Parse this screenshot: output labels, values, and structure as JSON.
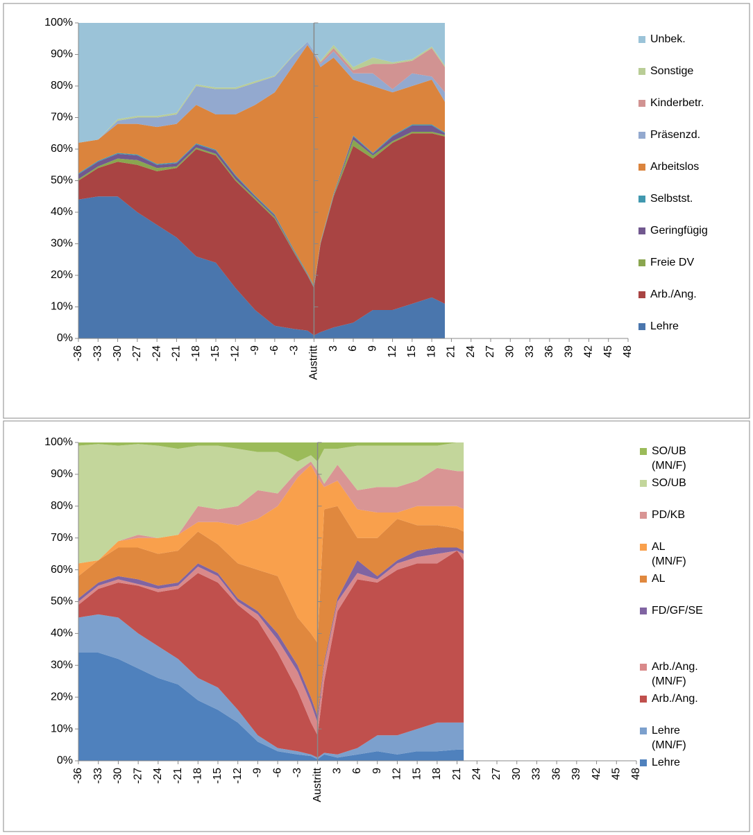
{
  "chart_data": [
    {
      "type": "area",
      "stacked": true,
      "legend": "right",
      "x": [
        -36,
        -33,
        -30,
        -27,
        -24,
        -21,
        -18,
        -15,
        -12,
        -9,
        -6,
        -3,
        -1,
        0,
        1,
        3,
        6,
        9,
        12,
        15,
        18,
        20
      ],
      "xlim": [
        -36,
        48
      ],
      "xticks": [
        -36,
        -33,
        -30,
        -27,
        -24,
        -21,
        -18,
        -15,
        -12,
        -9,
        -6,
        -3,
        {
          "value": 0,
          "label": "Austritt"
        },
        3,
        6,
        9,
        12,
        15,
        18,
        21,
        24,
        27,
        30,
        33,
        36,
        39,
        42,
        45,
        48
      ],
      "ylim": [
        0,
        100
      ],
      "yticks": [
        {
          "value": 0,
          "label": "0%"
        },
        {
          "value": 10,
          "label": "10%"
        },
        {
          "value": 20,
          "label": "20%"
        },
        {
          "value": 30,
          "label": "30%"
        },
        {
          "value": 40,
          "label": "40%"
        },
        {
          "value": 50,
          "label": "50%"
        },
        {
          "value": 60,
          "label": "60%"
        },
        {
          "value": 70,
          "label": "70%"
        },
        {
          "value": 80,
          "label": "80%"
        },
        {
          "value": 90,
          "label": "90%"
        },
        {
          "value": 100,
          "label": "100%"
        }
      ],
      "series": [
        {
          "name": "Lehre",
          "color": "#4a76ad",
          "values": [
            44,
            45,
            45,
            40,
            36,
            32,
            26,
            24,
            16,
            9,
            4,
            3,
            2.5,
            1,
            2,
            3.5,
            5,
            9,
            9,
            11,
            13,
            11
          ]
        },
        {
          "name": "Arb./Ang.",
          "color": "#a94443",
          "values": [
            6,
            9,
            11,
            15,
            17,
            22,
            34,
            34,
            34,
            35,
            34,
            24,
            17.5,
            15,
            28,
            41.5,
            56,
            48,
            53,
            54,
            52,
            53
          ]
        },
        {
          "name": "Freie DV",
          "color": "#8aa64f",
          "values": [
            0.5,
            0.5,
            1,
            1.5,
            1,
            0.5,
            0.5,
            0.5,
            0.5,
            0.5,
            0.5,
            0.3,
            0.2,
            0.2,
            0.2,
            0.3,
            2,
            1,
            0.5,
            0.5,
            0.5,
            0.5
          ]
        },
        {
          "name": "Geringfügig",
          "color": "#71588f",
          "values": [
            1.5,
            1.5,
            1.5,
            1.5,
            1,
            1,
            1,
            1,
            1,
            0.5,
            0.5,
            0.3,
            0.2,
            0.2,
            0.2,
            0.3,
            1,
            0.5,
            1.5,
            2,
            2,
            0.5
          ]
        },
        {
          "name": "Selbstst.",
          "color": "#4198af",
          "values": [
            0.3,
            0.3,
            0.3,
            0.3,
            0.3,
            0.3,
            0.3,
            0.3,
            0.3,
            0.3,
            0.3,
            0.3,
            0.3,
            0.3,
            0.3,
            0.3,
            0.3,
            0.3,
            0.3,
            0.3,
            0.3,
            0.3
          ]
        },
        {
          "name": "Arbeitslos",
          "color": "#db843d",
          "values": [
            9.7,
            6.7,
            9.2,
            9.7,
            11.7,
            12.2,
            12.2,
            11.2,
            19.2,
            28.7,
            38.7,
            59.1,
            72.3,
            73.3,
            55.3,
            43.1,
            17.7,
            21.2,
            13.7,
            12.2,
            14.2,
            9.7
          ]
        },
        {
          "name": "Präsenzd.",
          "color": "#93a9cf",
          "values": [
            0,
            0,
            1,
            2,
            3,
            3,
            6,
            8,
            8,
            7,
            5,
            3,
            1,
            1,
            1,
            2,
            2,
            4,
            1,
            4,
            1,
            3
          ]
        },
        {
          "name": "Kinderbetr.",
          "color": "#d19392",
          "values": [
            0,
            0,
            0,
            0,
            0,
            0,
            0,
            0,
            0,
            0,
            0,
            0,
            0,
            0,
            0.5,
            1,
            1,
            3,
            8,
            4,
            9,
            8
          ]
        },
        {
          "name": "Sonstige",
          "color": "#b9cd96",
          "values": [
            0,
            0,
            0.5,
            0.5,
            0.5,
            0.5,
            0.5,
            0.5,
            0.5,
            0.5,
            0.3,
            0.3,
            0,
            0,
            0.5,
            1,
            1,
            2,
            0.5,
            0.5,
            0.5,
            0.5
          ]
        },
        {
          "name": "Unbek.",
          "color": "#9bc3d8",
          "values": [
            38,
            37,
            30.5,
            29.5,
            29.5,
            28.5,
            19.5,
            20.5,
            20.5,
            18.5,
            16.7,
            9.7,
            6,
            9,
            12,
            7,
            14,
            11,
            12.5,
            11.5,
            7.5,
            13.5
          ]
        }
      ]
    },
    {
      "type": "area",
      "stacked": true,
      "legend": "right",
      "x": [
        -36,
        -33,
        -30,
        -27,
        -24,
        -21,
        -18,
        -15,
        -12,
        -9,
        -6,
        -3,
        -1,
        0,
        1,
        3,
        6,
        9,
        12,
        15,
        18,
        21,
        22
      ],
      "xlim": [
        -36,
        48
      ],
      "xticks": [
        -36,
        -33,
        -30,
        -27,
        -24,
        -21,
        -18,
        -15,
        -12,
        -9,
        -6,
        -3,
        {
          "value": 0,
          "label": "Austritt"
        },
        3,
        6,
        9,
        12,
        15,
        18,
        21,
        24,
        27,
        30,
        33,
        36,
        39,
        42,
        45,
        48
      ],
      "ylim": [
        0,
        100
      ],
      "yticks": [
        {
          "value": 0,
          "label": "0%"
        },
        {
          "value": 10,
          "label": "10%"
        },
        {
          "value": 20,
          "label": "20%"
        },
        {
          "value": 30,
          "label": "30%"
        },
        {
          "value": 40,
          "label": "40%"
        },
        {
          "value": 50,
          "label": "50%"
        },
        {
          "value": 60,
          "label": "60%"
        },
        {
          "value": 70,
          "label": "70%"
        },
        {
          "value": 80,
          "label": "80%"
        },
        {
          "value": 90,
          "label": "90%"
        },
        {
          "value": 100,
          "label": "100%"
        }
      ],
      "series": [
        {
          "name": "Lehre",
          "color": "#4f81bd",
          "values": [
            34,
            34,
            32,
            29,
            26,
            24,
            19,
            16,
            12,
            6,
            3,
            2,
            1.5,
            0.5,
            2,
            1,
            2,
            3,
            2,
            3,
            3,
            3.5,
            3.5
          ]
        },
        {
          "name": "Lehre (MN/F)",
          "color": "#7ca0cd",
          "values": [
            11,
            12,
            13,
            11,
            10,
            8,
            7,
            7,
            4,
            2,
            1,
            1,
            0.5,
            0.5,
            0.5,
            1,
            2,
            5,
            6,
            7,
            9,
            8.5,
            8.5
          ]
        },
        {
          "name": "Arb./Ang.",
          "color": "#c0504d",
          "values": [
            4,
            8,
            11,
            15,
            17,
            22,
            33,
            33,
            33,
            36,
            30,
            19,
            10,
            7,
            22.5,
            45,
            53,
            48,
            52,
            52,
            50,
            54,
            51
          ]
        },
        {
          "name": "Arb./Ang. (MN/F)",
          "color": "#d9898a",
          "values": [
            1,
            1,
            1,
            0.5,
            1,
            1,
            2,
            2,
            1,
            2,
            4,
            6,
            6,
            4,
            5,
            3,
            2,
            1,
            2,
            2,
            3,
            0,
            2
          ]
        },
        {
          "name": "FD/GF/SE",
          "color": "#8064a2",
          "values": [
            1,
            1,
            1,
            1.5,
            1,
            1,
            1,
            1,
            1,
            1,
            2,
            2,
            2,
            2,
            1,
            1,
            4,
            1,
            1,
            2,
            2,
            1,
            1
          ]
        },
        {
          "name": "AL",
          "color": "#e0883e",
          "values": [
            7,
            7,
            9,
            10,
            10,
            10,
            10,
            9,
            11,
            13,
            18,
            15,
            20,
            23,
            48,
            29,
            7,
            12,
            13,
            8,
            7,
            6,
            6
          ]
        },
        {
          "name": "AL (MN/F)",
          "color": "#f9a04c",
          "values": [
            4,
            0,
            2,
            3,
            5,
            5,
            3,
            7,
            12,
            16,
            22,
            44,
            53,
            52,
            7,
            8,
            9,
            8,
            2,
            6,
            6,
            7,
            7
          ]
        },
        {
          "name": "PD/KB",
          "color": "#d99594",
          "values": [
            0,
            0,
            0,
            1,
            0,
            0,
            5,
            4,
            6,
            9,
            4,
            2,
            1,
            2,
            1,
            5,
            6,
            8,
            8,
            8,
            12,
            11,
            12
          ]
        },
        {
          "name": "SO/UB",
          "color": "#c3d69b",
          "values": [
            37,
            36.5,
            30,
            28.5,
            29,
            27,
            19,
            20,
            18,
            12,
            13,
            3,
            2,
            3,
            11,
            5,
            14,
            13,
            13,
            11,
            7,
            9,
            9
          ]
        },
        {
          "name": "SO/UB (MN/F)",
          "color": "#9bbb59",
          "values": [
            1,
            0.5,
            1,
            0.5,
            1,
            2,
            1,
            1,
            2,
            3,
            3,
            6,
            4,
            6,
            2,
            2,
            1,
            1,
            1,
            1,
            1,
            0,
            0
          ]
        }
      ]
    }
  ]
}
